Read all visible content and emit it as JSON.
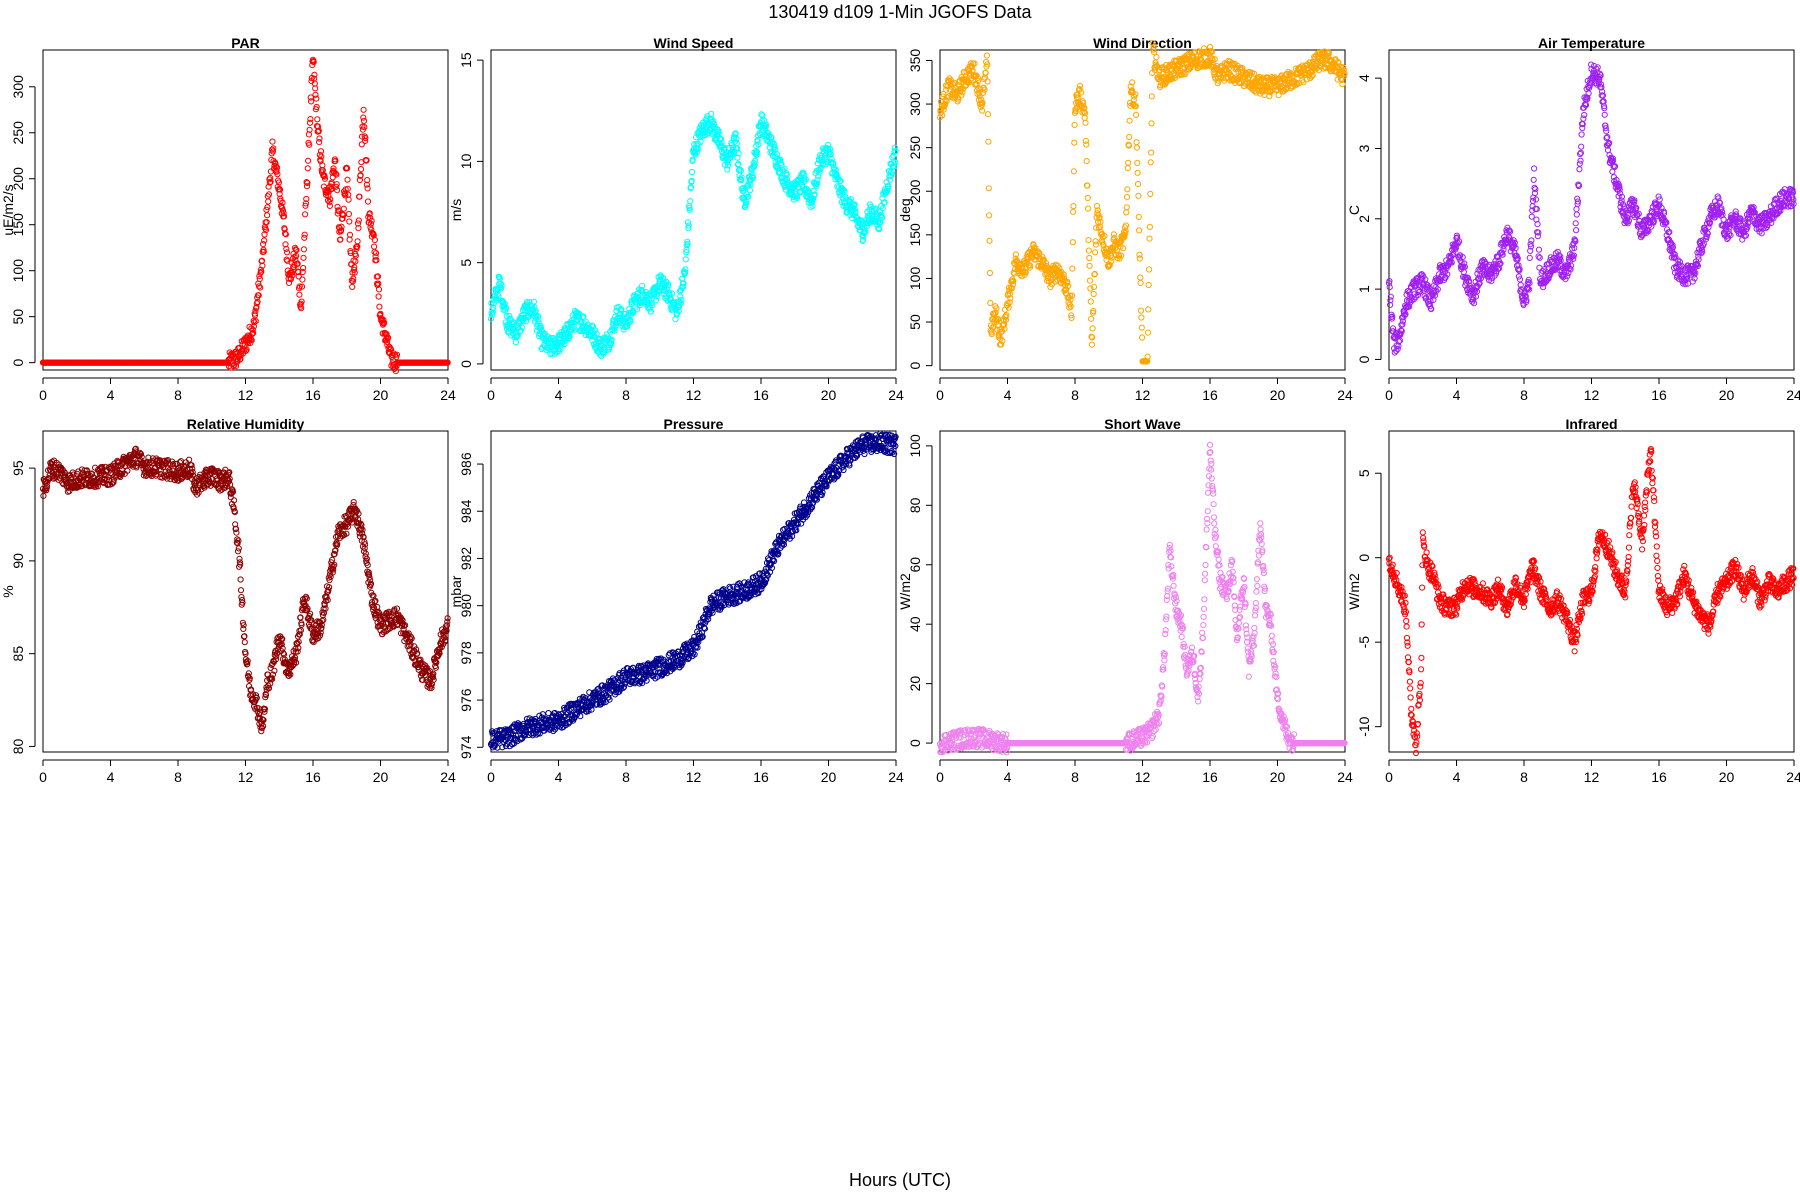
{
  "page": {
    "title": "130419   d109   1-Min  JGOFS Data",
    "x_axis_label": "Hours (UTC)"
  },
  "chart_data": [
    {
      "type": "scatter",
      "title": "PAR",
      "xlabel": "",
      "ylabel": "uE/m2/s",
      "color": "#ff0000",
      "xlim": [
        0,
        24
      ],
      "ylim": [
        -8,
        340
      ],
      "xticks": [
        0,
        4,
        8,
        12,
        16,
        20,
        24
      ],
      "yticks": [
        0,
        50,
        100,
        150,
        200,
        250,
        300
      ],
      "series": [
        {
          "x": [
            0,
            2,
            4,
            6,
            8,
            10,
            11,
            11.5,
            12,
            12.5,
            13,
            13.3,
            13.6,
            14,
            14.3,
            14.6,
            15,
            15.3,
            15.6,
            16,
            16.3,
            16.6,
            17,
            17.3,
            17.6,
            18,
            18.3,
            18.6,
            19,
            19.3,
            19.6,
            20,
            20.3,
            20.6,
            21,
            22,
            23,
            24
          ],
          "y": [
            0,
            0,
            0,
            0,
            0,
            0,
            0,
            5,
            20,
            40,
            110,
            170,
            230,
            190,
            150,
            90,
            120,
            60,
            180,
            330,
            250,
            200,
            180,
            220,
            130,
            210,
            90,
            120,
            280,
            160,
            140,
            50,
            30,
            5,
            0,
            0,
            0,
            0
          ]
        }
      ]
    },
    {
      "type": "scatter",
      "title": "Wind Speed",
      "xlabel": "",
      "ylabel": "m/s",
      "color": "#00ffff",
      "xlim": [
        0,
        24
      ],
      "ylim": [
        -0.3,
        15.5
      ],
      "xticks": [
        0,
        4,
        8,
        12,
        16,
        20,
        24
      ],
      "yticks": [
        0,
        5,
        10,
        15
      ],
      "series": [
        {
          "x": [
            0,
            0.5,
            1,
            1.5,
            2,
            2.5,
            3,
            3.5,
            4,
            4.5,
            5,
            5.5,
            6,
            6.5,
            7,
            7.5,
            8,
            8.5,
            9,
            9.5,
            10,
            10.5,
            11,
            11.5,
            12,
            12.5,
            13,
            13.5,
            14,
            14.5,
            15,
            15.5,
            16,
            16.5,
            17,
            17.5,
            18,
            18.5,
            19,
            19.5,
            20,
            20.5,
            21,
            21.5,
            22,
            22.5,
            23,
            23.5,
            24
          ],
          "y": [
            2.5,
            4.0,
            2.0,
            1.5,
            2.5,
            2.8,
            1.2,
            0.8,
            1.0,
            1.5,
            2.2,
            2.0,
            1.5,
            0.8,
            1.2,
            2.5,
            2.0,
            3.0,
            3.5,
            3.0,
            4.0,
            3.5,
            2.5,
            4.5,
            10.5,
            11.5,
            12.0,
            11.0,
            10.0,
            11.0,
            8.0,
            9.5,
            12.0,
            11.0,
            10.0,
            9.0,
            8.5,
            9.0,
            8.0,
            10.0,
            10.5,
            9.0,
            8.0,
            7.5,
            6.5,
            7.5,
            7.0,
            9.0,
            10.5
          ]
        }
      ]
    },
    {
      "type": "scatter",
      "title": "Wind Direction",
      "xlabel": "",
      "ylabel": "deg",
      "color": "#ffa500",
      "xlim": [
        0,
        24
      ],
      "ylim": [
        -5,
        362
      ],
      "xticks": [
        0,
        4,
        8,
        12,
        16,
        20,
        24
      ],
      "yticks": [
        0,
        50,
        100,
        150,
        200,
        250,
        300,
        350
      ],
      "series": [
        {
          "x": [
            0,
            0.5,
            1,
            1.5,
            2,
            2.5,
            2.8,
            3,
            3.3,
            3.6,
            4,
            4.5,
            5,
            5.5,
            6,
            6.5,
            7,
            7.5,
            7.8,
            8,
            8.3,
            8.6,
            9,
            9.3,
            9.6,
            10,
            10.3,
            10.6,
            11,
            11.3,
            11.6,
            12,
            12.3,
            12.6,
            13,
            14,
            15,
            16,
            16.5,
            17,
            18,
            19,
            20,
            21,
            22,
            22.5,
            23,
            23.5,
            24
          ],
          "y": [
            290,
            320,
            310,
            330,
            340,
            300,
            350,
            40,
            60,
            30,
            70,
            120,
            110,
            130,
            120,
            100,
            110,
            90,
            60,
            300,
            310,
            290,
            20,
            180,
            150,
            120,
            140,
            130,
            150,
            320,
            300,
            5,
            5,
            360,
            330,
            340,
            350,
            355,
            330,
            340,
            330,
            320,
            320,
            330,
            340,
            350,
            350,
            340,
            330
          ]
        }
      ]
    },
    {
      "type": "scatter",
      "title": "Air Temperature",
      "xlabel": "",
      "ylabel": "C",
      "color": "#a020f0",
      "xlim": [
        0,
        24
      ],
      "ylim": [
        -0.15,
        4.4
      ],
      "xticks": [
        0,
        4,
        8,
        12,
        16,
        20,
        24
      ],
      "yticks": [
        0,
        1,
        2,
        3,
        4
      ],
      "series": [
        {
          "x": [
            0,
            0.3,
            0.6,
            1,
            1.5,
            2,
            2.5,
            3,
            3.5,
            4,
            4.5,
            5,
            5.5,
            6,
            6.5,
            7,
            7.5,
            8,
            8.3,
            8.6,
            9,
            9.5,
            10,
            10.5,
            11,
            11.5,
            12,
            12.5,
            13,
            13.5,
            14,
            14.5,
            15,
            15.5,
            16,
            16.5,
            17,
            17.5,
            18,
            18.5,
            19,
            19.5,
            20,
            20.5,
            21,
            21.5,
            22,
            22.5,
            23,
            23.5,
            24
          ],
          "y": [
            1.1,
            0.2,
            0.3,
            0.8,
            1.0,
            1.1,
            0.8,
            1.2,
            1.3,
            1.7,
            1.2,
            0.9,
            1.3,
            1.2,
            1.4,
            1.8,
            1.5,
            0.8,
            1.1,
            2.6,
            1.1,
            1.3,
            1.4,
            1.2,
            1.6,
            3.5,
            4.1,
            4.0,
            3.0,
            2.5,
            2.0,
            2.2,
            1.8,
            2.0,
            2.2,
            1.8,
            1.3,
            1.2,
            1.2,
            1.6,
            2.0,
            2.2,
            1.8,
            2.0,
            1.8,
            2.1,
            1.9,
            2.0,
            2.2,
            2.3,
            2.3
          ]
        }
      ]
    },
    {
      "type": "scatter",
      "title": "Relative Humidity",
      "xlabel": "",
      "ylabel": "%",
      "color": "#8b0000",
      "xlim": [
        0,
        24
      ],
      "ylim": [
        79.7,
        97
      ],
      "xticks": [
        0,
        4,
        8,
        12,
        16,
        20,
        24
      ],
      "yticks": [
        80,
        85,
        90,
        95
      ],
      "series": [
        {
          "x": [
            0,
            0.5,
            1,
            1.5,
            2,
            3,
            4,
            5,
            5.5,
            6,
            7,
            8,
            8.7,
            9,
            10,
            10.5,
            11,
            11.3,
            11.6,
            12,
            12.3,
            12.6,
            13,
            13.3,
            13.6,
            14,
            14.5,
            15,
            15.5,
            16,
            16.5,
            17,
            17.5,
            18,
            18.5,
            19,
            19.5,
            20,
            20.5,
            21,
            21.5,
            22,
            22.5,
            23,
            23.5,
            24
          ],
          "y": [
            93.8,
            95.0,
            94.8,
            94.2,
            94.4,
            94.5,
            94.6,
            95.3,
            95.6,
            95.1,
            95.0,
            94.8,
            95.0,
            94.0,
            94.6,
            94.3,
            94.5,
            93.0,
            90.5,
            85.0,
            83.0,
            82.5,
            81.0,
            83.5,
            84.0,
            86.0,
            84.0,
            85.0,
            88.0,
            86.0,
            86.5,
            89.0,
            91.5,
            92.0,
            92.8,
            91.0,
            88.0,
            86.5,
            86.8,
            87.0,
            86.0,
            85.0,
            84.0,
            83.5,
            85.5,
            86.5
          ]
        }
      ]
    },
    {
      "type": "scatter",
      "title": "Pressure",
      "xlabel": "",
      "ylabel": "mbar",
      "color": "#00008b",
      "xlim": [
        0,
        24
      ],
      "ylim": [
        973.8,
        987.4
      ],
      "xticks": [
        0,
        4,
        8,
        12,
        16,
        20,
        24
      ],
      "yticks": [
        974,
        976,
        978,
        980,
        982,
        984,
        986
      ],
      "series": [
        {
          "x": [
            0,
            1,
            2,
            3,
            4,
            5,
            6,
            7,
            8,
            9,
            10,
            11,
            12,
            12.5,
            13,
            14,
            15,
            16,
            17,
            18,
            19,
            20,
            21,
            22,
            23,
            24
          ],
          "y": [
            974.3,
            974.4,
            974.8,
            975.0,
            975.1,
            975.6,
            976.0,
            976.4,
            977.0,
            977.1,
            977.4,
            977.7,
            978.2,
            979.0,
            980.0,
            980.4,
            980.6,
            981.0,
            982.5,
            983.5,
            984.5,
            985.4,
            986.2,
            986.8,
            986.9,
            986.8
          ]
        }
      ]
    },
    {
      "type": "scatter",
      "title": "Short Wave",
      "xlabel": "",
      "ylabel": "W/m2",
      "color": "#ee82ee",
      "xlim": [
        0,
        24
      ],
      "ylim": [
        -3,
        105
      ],
      "xticks": [
        0,
        4,
        8,
        12,
        16,
        20,
        24
      ],
      "yticks": [
        0,
        20,
        40,
        60,
        80,
        100
      ],
      "series": [
        {
          "x": [
            0,
            2,
            4,
            6,
            8,
            10,
            11,
            11.5,
            12,
            12.5,
            13,
            13.3,
            13.6,
            14,
            14.3,
            14.6,
            15,
            15.3,
            15.6,
            16,
            16.3,
            16.6,
            17,
            17.3,
            17.6,
            18,
            18.3,
            18.6,
            19,
            19.3,
            19.6,
            20,
            20.3,
            20.6,
            21,
            22,
            23,
            24
          ],
          "y": [
            0,
            2,
            0,
            0,
            0,
            0,
            0,
            1,
            2,
            4,
            10,
            30,
            65,
            45,
            40,
            25,
            30,
            15,
            40,
            100,
            70,
            55,
            50,
            60,
            35,
            55,
            25,
            35,
            75,
            45,
            40,
            15,
            8,
            2,
            0,
            0,
            0,
            0
          ]
        }
      ]
    },
    {
      "type": "scatter",
      "title": "Infrared",
      "xlabel": "",
      "ylabel": "W/m2",
      "color": "#ff0000",
      "xlim": [
        0,
        24
      ],
      "ylim": [
        -11.5,
        7.5
      ],
      "xticks": [
        0,
        4,
        8,
        12,
        16,
        20,
        24
      ],
      "yticks": [
        -10,
        -5,
        0,
        5
      ],
      "series": [
        {
          "x": [
            0,
            0.5,
            1,
            1.3,
            1.6,
            1.9,
            2,
            2.3,
            2.6,
            3,
            3.5,
            4,
            4.5,
            5,
            5.5,
            6,
            6.5,
            7,
            7.5,
            8,
            8.5,
            9,
            9.5,
            10,
            10.5,
            11,
            11.5,
            12,
            12.5,
            13,
            13.5,
            14,
            14.5,
            15,
            15.5,
            16,
            16.5,
            17,
            17.5,
            18,
            18.5,
            19,
            19.5,
            20,
            20.5,
            21,
            21.5,
            22,
            22.5,
            23,
            23.5,
            24
          ],
          "y": [
            0,
            -1.5,
            -3,
            -9,
            -11,
            -7,
            1,
            -0.5,
            -1.0,
            -2.5,
            -3,
            -2.8,
            -1.5,
            -1.8,
            -2.0,
            -2.5,
            -1.8,
            -3,
            -1.5,
            -2.5,
            -0.5,
            -2,
            -3,
            -2.5,
            -3.5,
            -5,
            -2.5,
            -2,
            1.5,
            0.5,
            -1.0,
            -2,
            4.5,
            1.0,
            6.5,
            -2,
            -3,
            -2.5,
            -1.0,
            -2.5,
            -3.5,
            -4.0,
            -2.0,
            -1.5,
            -0.5,
            -2.0,
            -1.0,
            -2.5,
            -1.5,
            -2.0,
            -1.5,
            -1.0
          ]
        }
      ]
    }
  ]
}
